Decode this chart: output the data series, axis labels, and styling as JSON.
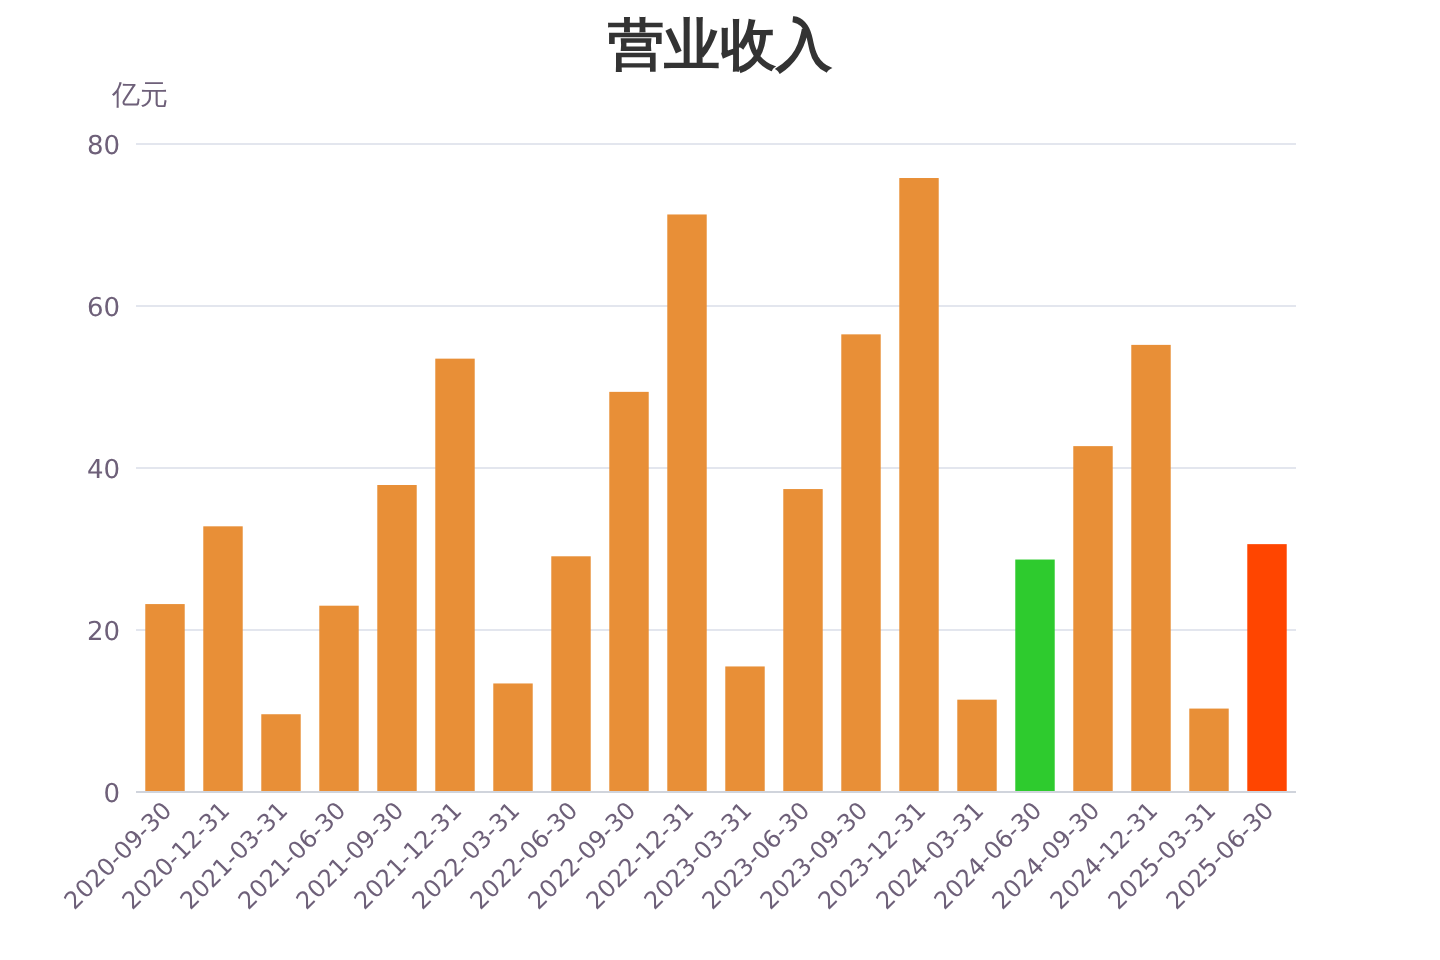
{
  "chart_data": {
    "type": "bar",
    "title": "营业收入",
    "ylabel": "亿元",
    "categories": [
      "2020-09-30",
      "2020-12-31",
      "2021-03-31",
      "2021-06-30",
      "2021-09-30",
      "2021-12-31",
      "2022-03-31",
      "2022-06-30",
      "2022-09-30",
      "2022-12-31",
      "2023-03-31",
      "2023-06-30",
      "2023-09-30",
      "2023-12-31",
      "2024-03-31",
      "2024-06-30",
      "2024-09-30",
      "2024-12-31",
      "2025-03-31",
      "2025-06-30"
    ],
    "values": [
      23.2,
      32.8,
      9.6,
      23.0,
      37.9,
      53.5,
      13.4,
      29.1,
      49.4,
      71.3,
      15.5,
      37.4,
      56.5,
      75.8,
      11.4,
      28.7,
      42.7,
      55.2,
      10.3,
      30.6
    ],
    "colors": [
      "#e88f37",
      "#e88f37",
      "#e88f37",
      "#e88f37",
      "#e88f37",
      "#e88f37",
      "#e88f37",
      "#e88f37",
      "#e88f37",
      "#e88f37",
      "#e88f37",
      "#e88f37",
      "#e88f37",
      "#e88f37",
      "#e88f37",
      "#2ecb2e",
      "#e88f37",
      "#e88f37",
      "#e88f37",
      "#ff4500"
    ],
    "ylim": [
      0,
      80
    ],
    "yticks": [
      0,
      20,
      40,
      60,
      80
    ],
    "grid": "y"
  }
}
